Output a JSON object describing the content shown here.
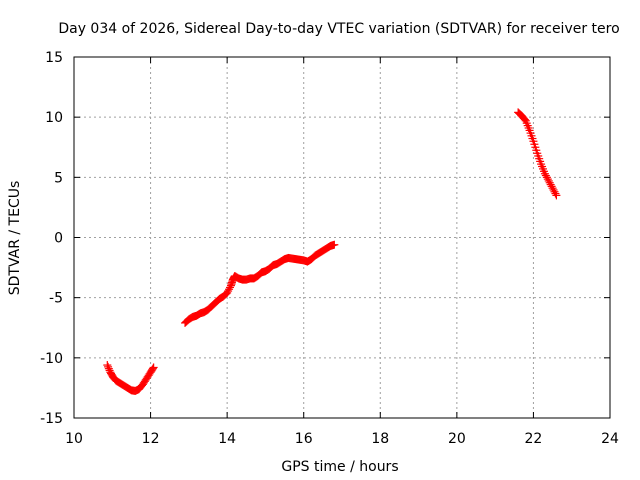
{
  "chart_data": {
    "type": "scatter",
    "title": "Day 034 of 2026, Sidereal Day-to-day VTEC variation (SDTVAR) for receiver tero",
    "xlabel": "GPS time / hours",
    "ylabel": "SDTVAR / TECUs",
    "xlim": [
      10,
      24
    ],
    "ylim": [
      -15,
      15
    ],
    "xticks": [
      10,
      12,
      14,
      16,
      18,
      20,
      22,
      24
    ],
    "yticks": [
      -15,
      -10,
      -5,
      0,
      5,
      10,
      15
    ],
    "xtick_labels": [
      "10",
      "12",
      "14",
      "16",
      "18",
      "20",
      "22",
      "24"
    ],
    "ytick_labels": [
      "-15",
      "-10",
      "-5",
      "0",
      "5",
      "10",
      "15"
    ],
    "grid": true,
    "marker": "+",
    "color": "#ff0000",
    "series": [
      {
        "values": [
          [
            10.87,
            -10.6
          ],
          [
            10.95,
            -11.2
          ],
          [
            11.02,
            -11.6
          ],
          [
            11.1,
            -11.9
          ],
          [
            11.2,
            -12.1
          ],
          [
            11.3,
            -12.3
          ],
          [
            11.4,
            -12.5
          ],
          [
            11.5,
            -12.7
          ],
          [
            11.6,
            -12.75
          ],
          [
            11.7,
            -12.6
          ],
          [
            11.8,
            -12.2
          ],
          [
            11.9,
            -11.7
          ],
          [
            12.0,
            -11.2
          ],
          [
            12.08,
            -10.8
          ]
        ]
      },
      {
        "values": [
          [
            12.9,
            -7.1
          ],
          [
            13.0,
            -6.8
          ],
          [
            13.1,
            -6.6
          ],
          [
            13.2,
            -6.5
          ],
          [
            13.3,
            -6.3
          ],
          [
            13.4,
            -6.2
          ],
          [
            13.5,
            -6.0
          ],
          [
            13.6,
            -5.7
          ],
          [
            13.7,
            -5.4
          ],
          [
            13.8,
            -5.1
          ],
          [
            13.9,
            -4.9
          ],
          [
            14.0,
            -4.6
          ],
          [
            14.1,
            -4.0
          ],
          [
            14.15,
            -3.5
          ],
          [
            14.2,
            -3.2
          ],
          [
            14.3,
            -3.4
          ],
          [
            14.4,
            -3.5
          ],
          [
            14.5,
            -3.5
          ],
          [
            14.6,
            -3.4
          ],
          [
            14.7,
            -3.4
          ],
          [
            14.8,
            -3.2
          ],
          [
            14.9,
            -2.9
          ],
          [
            15.0,
            -2.8
          ],
          [
            15.1,
            -2.6
          ],
          [
            15.2,
            -2.3
          ],
          [
            15.3,
            -2.2
          ],
          [
            15.4,
            -2.0
          ],
          [
            15.5,
            -1.8
          ],
          [
            15.6,
            -1.7
          ],
          [
            15.7,
            -1.75
          ],
          [
            15.8,
            -1.8
          ],
          [
            15.9,
            -1.85
          ],
          [
            16.0,
            -1.9
          ],
          [
            16.1,
            -2.0
          ],
          [
            16.2,
            -1.8
          ],
          [
            16.3,
            -1.5
          ],
          [
            16.4,
            -1.3
          ],
          [
            16.5,
            -1.1
          ],
          [
            16.6,
            -0.9
          ],
          [
            16.7,
            -0.7
          ],
          [
            16.8,
            -0.6
          ]
        ]
      },
      {
        "values": [
          [
            21.6,
            10.4
          ],
          [
            21.7,
            10.1
          ],
          [
            21.8,
            9.7
          ],
          [
            21.9,
            8.9
          ],
          [
            22.0,
            8.0
          ],
          [
            22.1,
            7.0
          ],
          [
            22.2,
            6.1
          ],
          [
            22.3,
            5.3
          ],
          [
            22.4,
            4.7
          ],
          [
            22.5,
            4.1
          ],
          [
            22.6,
            3.5
          ]
        ]
      }
    ]
  }
}
